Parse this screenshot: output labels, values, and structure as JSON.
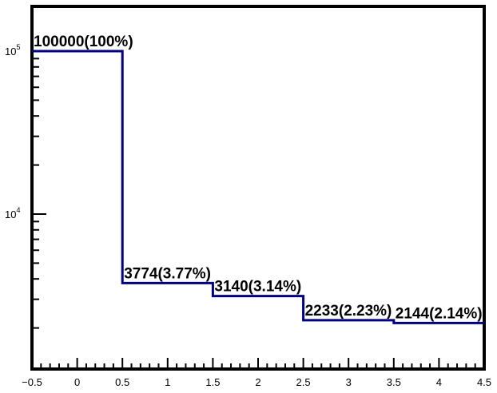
{
  "chart_data": {
    "type": "histogram-step",
    "title": "",
    "xlabel": "",
    "ylabel": "",
    "y_scale": "log",
    "xlim": [
      -0.5,
      4.5
    ],
    "ylim_approx": [
      1500,
      150000
    ],
    "grid": false,
    "legend": "none",
    "line_color": "#000080",
    "bins": [
      {
        "x_low": -0.5,
        "x_high": 0.5,
        "value": 100000,
        "label": "100000(100%)"
      },
      {
        "x_low": 0.5,
        "x_high": 1.5,
        "value": 3774,
        "label": "3774(3.77%)"
      },
      {
        "x_low": 1.5,
        "x_high": 2.5,
        "value": 3140,
        "label": "3140(3.14%)"
      },
      {
        "x_low": 2.5,
        "x_high": 3.5,
        "value": 2233,
        "label": "2233(2.23%)"
      },
      {
        "x_low": 3.5,
        "x_high": 4.5,
        "value": 2144,
        "label": "2144(2.14%)"
      }
    ],
    "x_tick_labels": [
      "−0.5",
      "0",
      "0.5",
      "1",
      "1.5",
      "2",
      "2.5",
      "3",
      "3.5",
      "4",
      "4.5"
    ],
    "y_tick_labels": [
      {
        "value": 100000,
        "base": "10",
        "exp": "5"
      },
      {
        "value": 10000,
        "base": "10",
        "exp": "4"
      }
    ]
  }
}
